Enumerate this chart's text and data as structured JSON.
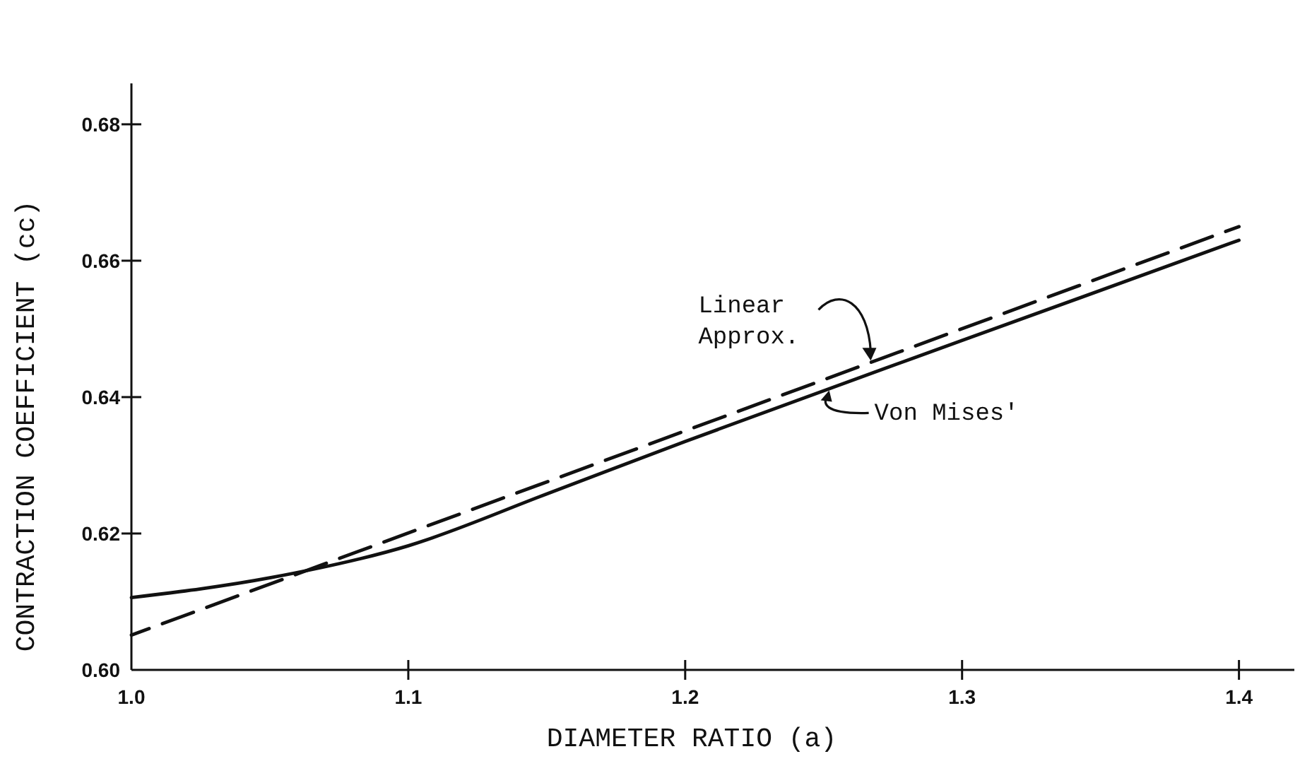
{
  "chart_data": {
    "type": "line",
    "xlabel": "DIAMETER RATIO (a)",
    "ylabel": "CONTRACTION COEFFICIENT (cc)",
    "xlim": [
      1.0,
      1.42
    ],
    "ylim": [
      0.6,
      0.686
    ],
    "xticks": [
      {
        "value": 1.0,
        "label": "1.0"
      },
      1.1,
      1.2,
      1.3,
      1.4
    ],
    "yticks": [
      {
        "value": 0.6,
        "label": "0.60"
      },
      0.62,
      0.64,
      0.66,
      0.68
    ],
    "grid": false,
    "marker": "none",
    "series": [
      {
        "name": "Von Mises'",
        "color": "#111111",
        "line_style": "solid",
        "x": [
          1.0,
          1.05,
          1.1,
          1.15,
          1.2,
          1.3,
          1.4
        ],
        "values": [
          0.6106,
          0.6135,
          0.6182,
          0.6258,
          0.6335,
          0.6483,
          0.663
        ]
      },
      {
        "name": "Linear Approx.",
        "color": "#111111",
        "line_style": "dashed",
        "x": [
          1.0,
          1.4
        ],
        "values": [
          0.6051,
          0.665
        ]
      }
    ]
  }
}
